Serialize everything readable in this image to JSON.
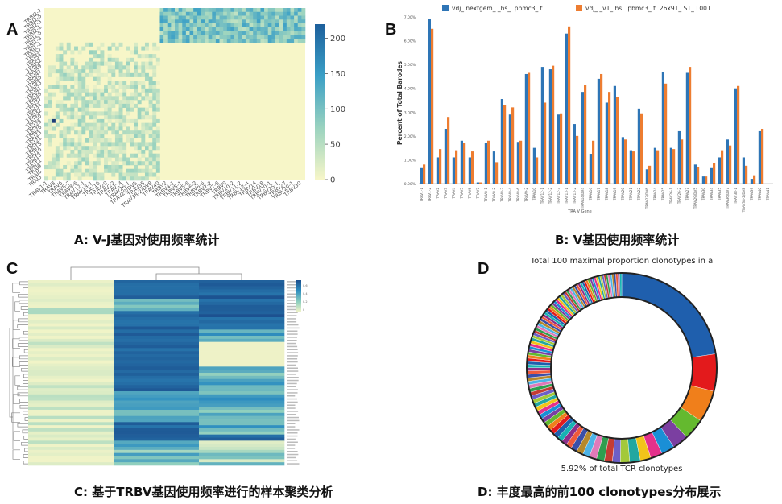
{
  "panels": {
    "A": {
      "letter": "A",
      "caption": "A: V-J基因对使用频率统计"
    },
    "B": {
      "letter": "B",
      "caption": "B: V基因使用频率统计"
    },
    "C": {
      "letter": "C",
      "caption": "C: 基于TRBV基因使用频率进行的样本聚类分析"
    },
    "D": {
      "letter": "D",
      "caption": "D: 丰度最高的前100 clonotypes分布展示"
    }
  },
  "chart_data": [
    {
      "id": "A",
      "type": "heatmap",
      "title": "",
      "colorbar": {
        "min": 0,
        "max": 220,
        "ticks": [
          0,
          50,
          100,
          150,
          200
        ],
        "colors": [
          "#f7f6c8",
          "#9bd3bf",
          "#3a9fc6",
          "#1d5f9c"
        ]
      },
      "row_labels": [
        "TRBJ2-7",
        "TRBJ2-5",
        "TRBJ2-3",
        "TRBJ2-1",
        "TRBJ1-5",
        "TRBJ1-3",
        "TRBJ1-1",
        "TRAJ57",
        "TRAJ54",
        "TRAJ52",
        "TRAJ49",
        "TRAJ47",
        "TRAJ45",
        "TRAJ43",
        "TRAJ41",
        "TRAJ39",
        "TRAJ37",
        "TRAJ34",
        "TRAJ32",
        "TRAJ30",
        "TRAJ28",
        "TRAJ26",
        "TRAJ23",
        "TRAJ21",
        "TRAJ18",
        "TRAJ16",
        "TRAJ13",
        "TRAJ11",
        "TRAJ9",
        "TRAJ6",
        "TRAJ3"
      ],
      "col_labels": [
        "TRAV1-1",
        "TRAV3",
        "TRAV6",
        "TRAV8-2",
        "TRAV8-6",
        "TRAV12-1",
        "TRAV13-1",
        "TRAV16",
        "TRAV20",
        "TRAV22",
        "TRAV24",
        "TRAV26-1",
        "TRAV29/DV5",
        "TRAV35",
        "TRAV38-2/DV8",
        "TRAV40",
        "TRBV2",
        "TRBV4-1",
        "TRBV5-1",
        "TRBV5-6",
        "TRBV6-2",
        "TRBV6-6",
        "TRBV7-2",
        "TRBV7-6",
        "TRBV9",
        "TRBV10-2",
        "TRBV11-2",
        "TRBV12-4",
        "TRBV14",
        "TRBV18",
        "TRBV20-1",
        "TRBV25-1",
        "TRBV27",
        "TRBV29-1",
        "TRBV30"
      ]
    },
    {
      "id": "B",
      "type": "bar",
      "title": "",
      "xlabel": "TRA V Gene",
      "ylabel": "Percent of Total Barodes",
      "ylim": [
        0,
        7
      ],
      "yticks": [
        "0.00%",
        "1.00%",
        "2.00%",
        "3.00%",
        "4.00%",
        "5.00%",
        "6.00%",
        "7.00%"
      ],
      "categories": [
        "TRAV1-1",
        "TRAV1-2",
        "TRAV2",
        "TRAV3",
        "TRAV4",
        "TRAV5",
        "TRAV6",
        "TRAV7",
        "TRAV8-1",
        "TRAV8-2",
        "TRAV8-3",
        "TRAV8-4",
        "TRAV8-6",
        "TRAV9-2",
        "TRAV10",
        "TRAV12-1",
        "TRAV12-2",
        "TRAV12-3",
        "TRAV13-1",
        "TRAV13-2",
        "TRAV14/DV4",
        "TRAV16",
        "TRAV17",
        "TRAV18",
        "TRAV19",
        "TRAV20",
        "TRAV21",
        "TRAV22",
        "TRAV23/DV6",
        "TRAV24",
        "TRAV25",
        "TRAV26-1",
        "TRAV26-2",
        "TRAV27",
        "TRAV29/DV5",
        "TRAV30",
        "TRAV34",
        "TRAV35",
        "TRAV36/DV7",
        "TRAV38-1",
        "TRAV38-2/DV8",
        "TRAV39",
        "TRAV40",
        "TRAV41"
      ],
      "series": [
        {
          "name": "vdj_ nextgem_ _hs_ .pbmc3_ t",
          "color": "#2e75b6",
          "values": [
            0.65,
            6.9,
            1.1,
            2.3,
            1.1,
            1.8,
            1.1,
            0.05,
            1.7,
            1.35,
            3.55,
            2.9,
            1.75,
            4.6,
            1.5,
            4.9,
            4.8,
            2.9,
            6.3,
            2.5,
            3.85,
            1.25,
            4.4,
            3.4,
            4.1,
            1.95,
            1.4,
            3.15,
            0.6,
            1.5,
            4.7,
            1.5,
            2.2,
            4.65,
            0.8,
            0.3,
            0.65,
            1.1,
            1.85,
            4.0,
            1.1,
            0.2,
            2.2,
            0.0
          ]
        },
        {
          "name": "vdj_ _v1_ hs. .pbmc3_ t .26x91_ S1_ L001",
          "color": "#ed7d31",
          "values": [
            0.8,
            6.5,
            1.45,
            2.8,
            1.4,
            1.7,
            1.35,
            0.05,
            1.8,
            0.9,
            3.3,
            3.2,
            1.8,
            4.65,
            1.1,
            3.4,
            4.95,
            2.95,
            6.6,
            2.0,
            4.15,
            1.8,
            4.6,
            3.85,
            3.65,
            1.85,
            1.35,
            2.95,
            0.75,
            1.4,
            4.2,
            1.45,
            1.85,
            4.9,
            0.7,
            0.3,
            0.85,
            1.4,
            1.6,
            4.1,
            0.75,
            0.35,
            2.3,
            0.0
          ]
        }
      ]
    },
    {
      "id": "C",
      "type": "heatmap",
      "title": "",
      "colorbar": {
        "ticks": [
          "0.6",
          "0.4",
          "0.2",
          "0"
        ],
        "colors": [
          "#f7f6c8",
          "#8fcfbe",
          "#2f8fc0",
          "#1b4f8e"
        ]
      }
    },
    {
      "id": "D",
      "type": "pie",
      "title": "Total 100 maximal proportion clonotypes in  a",
      "subtitle": "5.92% of total TCR clonotypes",
      "values": [
        0.5,
        0.14,
        0.12,
        0.08,
        0.06,
        0.05,
        0.045,
        0.04,
        0.04,
        0.035,
        0.03,
        0.03,
        0.03,
        0.028,
        0.026,
        0.025,
        0.024,
        0.022,
        0.021,
        0.02,
        0.02,
        0.019,
        0.018,
        0.018,
        0.017,
        0.017,
        0.016,
        0.016,
        0.015,
        0.015,
        0.015,
        0.014,
        0.014,
        0.014,
        0.013,
        0.013,
        0.013,
        0.013,
        0.012,
        0.012,
        0.012,
        0.012,
        0.012,
        0.011,
        0.011,
        0.011,
        0.011,
        0.011,
        0.011,
        0.01,
        0.01,
        0.01,
        0.01,
        0.01,
        0.01,
        0.01,
        0.01,
        0.0095,
        0.0095,
        0.0095,
        0.0095,
        0.0095,
        0.009,
        0.009,
        0.009,
        0.009,
        0.009,
        0.009,
        0.009,
        0.009,
        0.0085,
        0.0085,
        0.0085,
        0.0085,
        0.0085,
        0.0085,
        0.0085,
        0.0085,
        0.008,
        0.008,
        0.008,
        0.008,
        0.008,
        0.008,
        0.008,
        0.008,
        0.008,
        0.008,
        0.0075,
        0.0075,
        0.0075,
        0.0075,
        0.0075,
        0.0075,
        0.0075,
        0.0075,
        0.0075,
        0.0075,
        0.0075,
        0.0075
      ]
    }
  ]
}
